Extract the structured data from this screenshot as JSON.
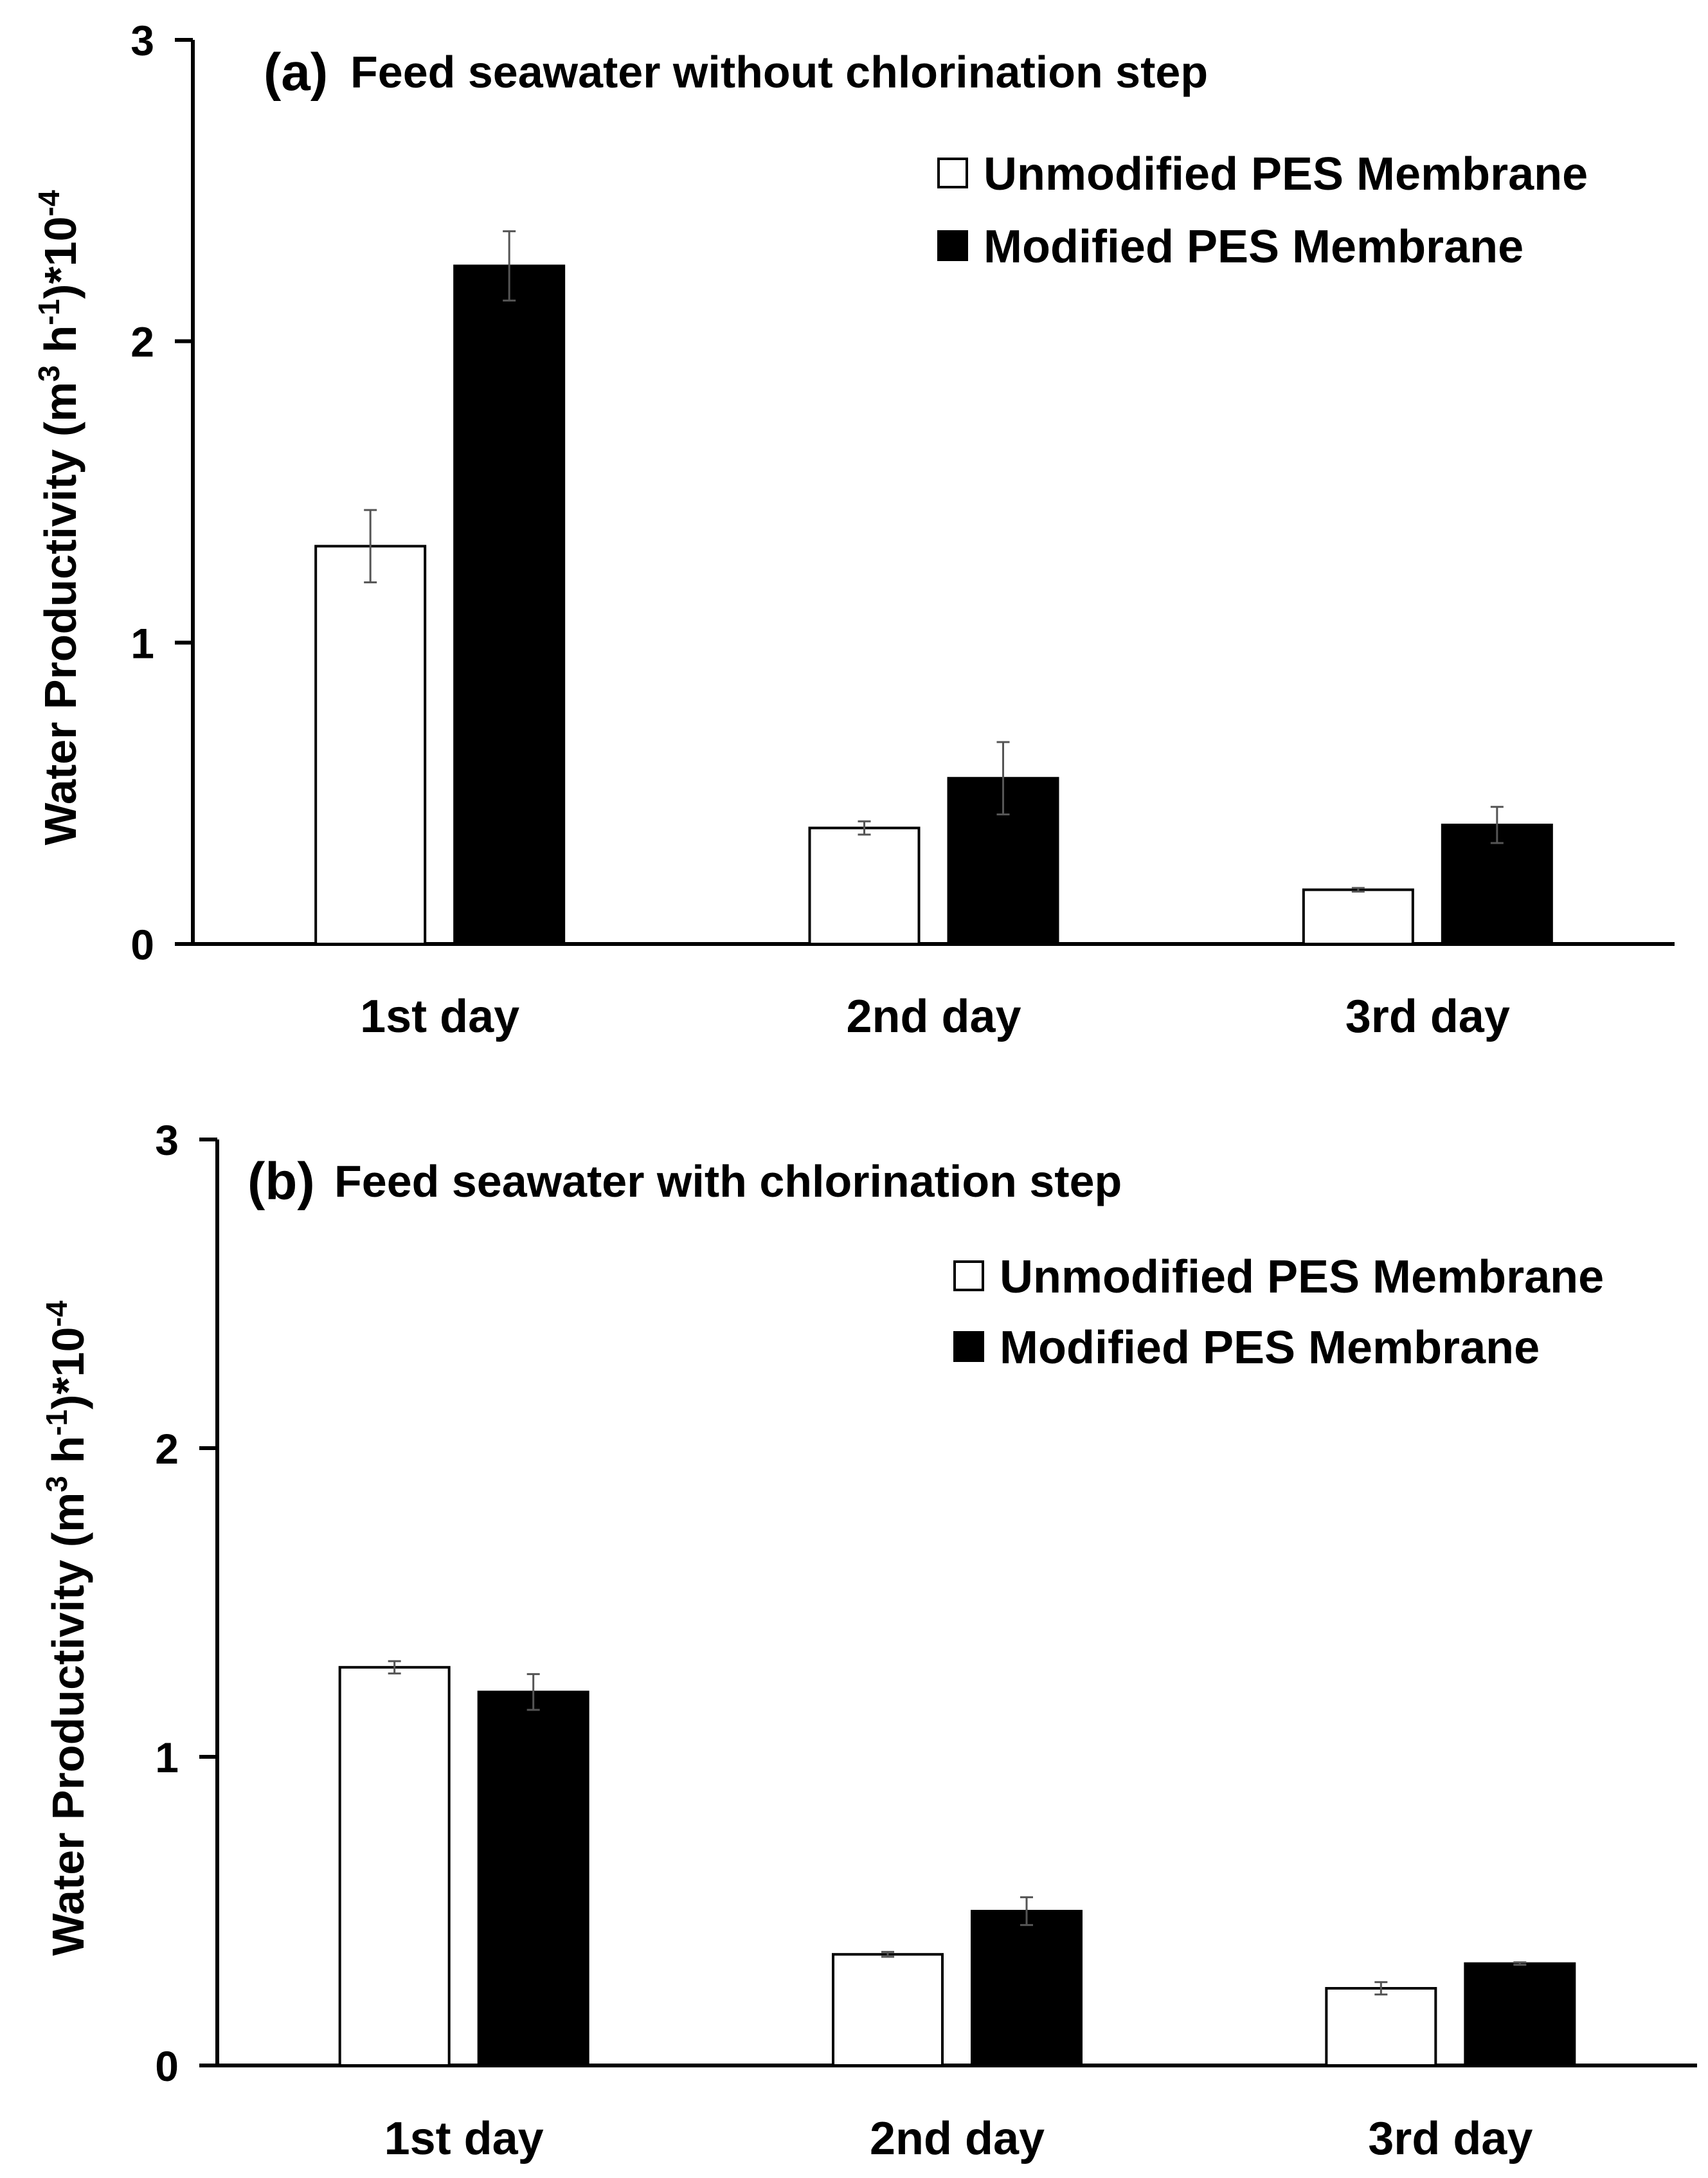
{
  "colors": {
    "unmodified": "#ffffff",
    "modified": "#000000",
    "axis": "#000000",
    "errorbar": "#555555"
  },
  "chart_data": [
    {
      "type": "bar",
      "panel_letter": "(a)",
      "title": "Feed seawater without chlorination step",
      "ylabel_main": "Water Productivity (m",
      "ylabel_sup1": "3",
      "ylabel_mid": " h",
      "ylabel_sup2": "-1",
      "ylabel_tail": ")*10",
      "ylabel_sup3": "-4",
      "ylim": [
        0,
        3
      ],
      "yticks": [
        "0",
        "1",
        "2",
        "3"
      ],
      "categories": [
        "1st day",
        "2nd day",
        "3rd day"
      ],
      "series": [
        {
          "name": "Unmodified PES Membrane",
          "values": [
            1.32,
            0.385,
            0.18
          ],
          "errors": [
            0.12,
            0.022,
            0.006
          ]
        },
        {
          "name": "Modified PES Membrane",
          "values": [
            2.25,
            0.55,
            0.395
          ],
          "errors": [
            0.115,
            0.12,
            0.06
          ]
        }
      ]
    },
    {
      "type": "bar",
      "panel_letter": "(b)",
      "title": "Feed seawater with chlorination step",
      "ylabel_main": "Water Productivity (m",
      "ylabel_sup1": "3",
      "ylabel_mid": " h",
      "ylabel_sup2": "-1",
      "ylabel_tail": ")*10",
      "ylabel_sup3": "-4",
      "ylim": [
        0,
        3
      ],
      "yticks": [
        "0",
        "1",
        "2",
        "3"
      ],
      "categories": [
        "1st day",
        "2nd day",
        "3rd day"
      ],
      "series": [
        {
          "name": "Unmodified PES Membrane",
          "values": [
            1.29,
            0.36,
            0.25
          ],
          "errors": [
            0.02,
            0.008,
            0.02
          ]
        },
        {
          "name": "Modified PES Membrane",
          "values": [
            1.21,
            0.5,
            0.33
          ],
          "errors": [
            0.058,
            0.045,
            0.004
          ]
        }
      ]
    }
  ]
}
